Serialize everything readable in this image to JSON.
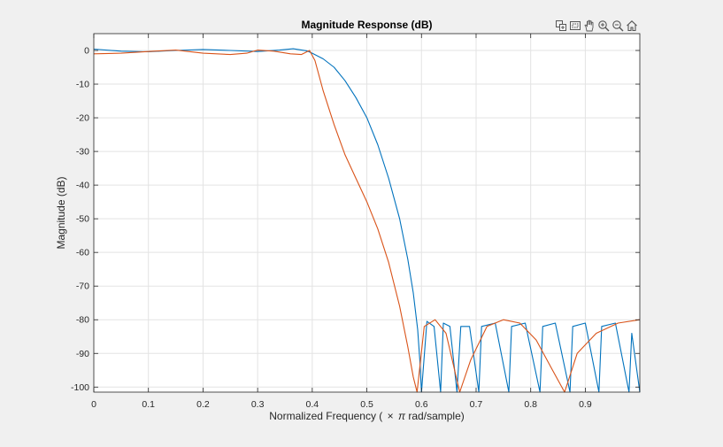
{
  "chart_data": {
    "type": "line",
    "title": "Magnitude Response (dB)",
    "xlabel_parts": [
      "Normalized  Frequency  (",
      "×",
      "π",
      " rad/sample)"
    ],
    "ylabel": "Magnitude (dB)",
    "xlim": [
      0,
      0.9998
    ],
    "ylim": [
      -101.5,
      5
    ],
    "xticks": [
      0,
      0.1,
      0.2,
      0.3,
      0.4,
      0.5,
      0.6,
      0.7,
      0.8,
      0.9
    ],
    "xtick_labels": [
      "0",
      "0.1",
      "0.2",
      "0.3",
      "0.4",
      "0.5",
      "0.6",
      "0.7",
      "0.8",
      "0.9"
    ],
    "yticks": [
      0,
      -10,
      -20,
      -30,
      -40,
      -50,
      -60,
      -70,
      -80,
      -90,
      -100
    ],
    "ytick_labels": [
      "0",
      "-10",
      "-20",
      "-30",
      "-40",
      "-50",
      "-60",
      "-70",
      "-80",
      "-90",
      "-100"
    ],
    "grid": true,
    "series": [
      {
        "color": "#0072bd",
        "x": [
          0,
          0.05,
          0.1,
          0.15,
          0.2,
          0.25,
          0.3,
          0.34,
          0.365,
          0.39,
          0.4,
          0.42,
          0.44,
          0.46,
          0.48,
          0.5,
          0.52,
          0.54,
          0.56,
          0.575,
          0.585,
          0.593,
          0.597,
          0.6,
          0.61,
          0.623,
          0.635,
          0.64,
          0.652,
          0.665,
          0.672,
          0.688,
          0.705,
          0.71,
          0.735,
          0.76,
          0.765,
          0.79,
          0.817,
          0.822,
          0.845,
          0.872,
          0.877,
          0.9,
          0.925,
          0.93,
          0.955,
          0.98,
          0.985,
          0.9998
        ],
        "y": [
          0.4,
          -0.2,
          -0.4,
          0,
          0.3,
          0,
          -0.3,
          0.1,
          0.5,
          -0.1,
          -0.8,
          -2.5,
          -5,
          -9,
          -14,
          -20,
          -28,
          -38,
          -50,
          -62,
          -72,
          -83,
          -92,
          -101.5,
          -80.5,
          -82,
          -101.5,
          -81,
          -82,
          -101.5,
          -82,
          -82,
          -101.5,
          -82,
          -81,
          -101.5,
          -82,
          -81,
          -101.5,
          -82,
          -81,
          -101.5,
          -82,
          -81,
          -101.5,
          -82,
          -81,
          -101.5,
          -84,
          -101.5
        ]
      },
      {
        "color": "#d95319",
        "x": [
          0,
          0.05,
          0.1,
          0.15,
          0.2,
          0.25,
          0.28,
          0.3,
          0.33,
          0.36,
          0.38,
          0.395,
          0.405,
          0.42,
          0.44,
          0.46,
          0.48,
          0.5,
          0.52,
          0.54,
          0.56,
          0.575,
          0.585,
          0.592,
          0.605,
          0.625,
          0.645,
          0.67,
          0.69,
          0.72,
          0.75,
          0.78,
          0.81,
          0.84,
          0.862,
          0.885,
          0.92,
          0.96,
          0.9998
        ],
        "y": [
          -1,
          -0.8,
          -0.3,
          0.1,
          -0.8,
          -1.2,
          -0.8,
          0.1,
          -0.2,
          -1,
          -1.2,
          0,
          -3,
          -12,
          -22,
          -31,
          -38,
          -45,
          -53,
          -63,
          -76,
          -88,
          -97,
          -101.5,
          -82,
          -80,
          -84,
          -101.5,
          -92,
          -82,
          -80,
          -81,
          -86,
          -95,
          -101.5,
          -90,
          -84,
          -81,
          -80
        ]
      }
    ]
  },
  "toolbar": {
    "icons": [
      "export-icon",
      "brush-icon",
      "pan-icon",
      "zoom-in-icon",
      "zoom-out-icon",
      "home-icon"
    ]
  }
}
